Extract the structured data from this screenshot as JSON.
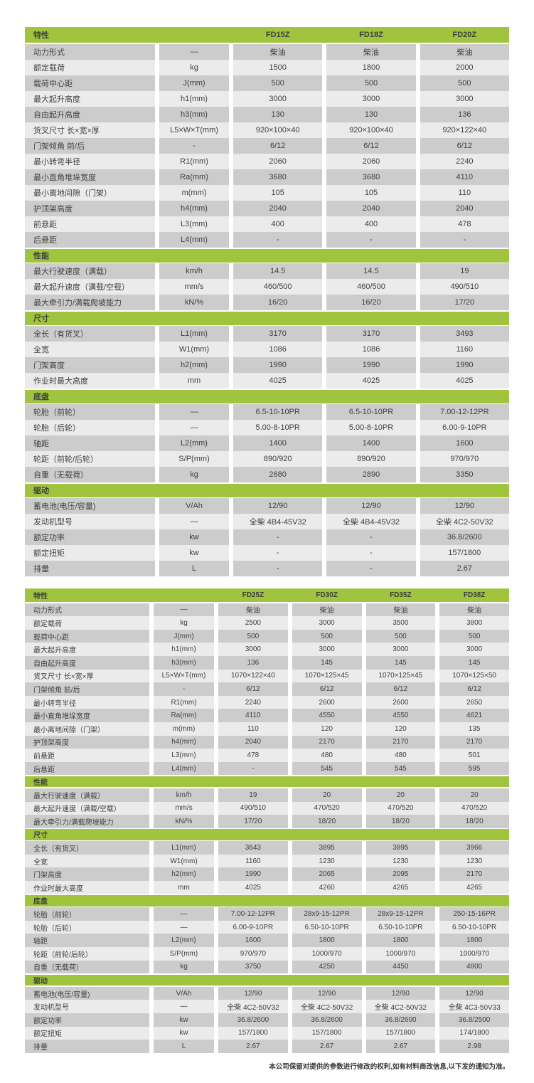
{
  "colors": {
    "green": "#a0c43e",
    "row_dark": "#cccccc",
    "row_light": "#ebebeb",
    "text": "#3f3f3f",
    "page_bg": "#ffffff"
  },
  "footer_note": "本公司保留对提供的参数进行修改的权利,如有材料商改信息,以下发的通知为准。",
  "tables": [
    {
      "feature_header": "特性",
      "models": [
        "FD15Z",
        "FD18Z",
        "FD20Z"
      ],
      "sections": [
        {
          "title": "",
          "rows": [
            {
              "label": "动力形式",
              "unit": "—",
              "values": [
                "柴油",
                "柴油",
                "柴油"
              ]
            },
            {
              "label": "额定载荷",
              "unit": "kg",
              "values": [
                "1500",
                "1800",
                "2000"
              ]
            },
            {
              "label": "载荷中心距",
              "unit": "J(mm)",
              "values": [
                "500",
                "500",
                "500"
              ]
            },
            {
              "label": "最大起升高度",
              "unit": "h1(mm)",
              "values": [
                "3000",
                "3000",
                "3000"
              ]
            },
            {
              "label": "自由起升高度",
              "unit": "h3(mm)",
              "values": [
                "130",
                "130",
                "136"
              ]
            },
            {
              "label": "货叉尺寸 长×宽×厚",
              "unit": "L5×W×T(mm)",
              "values": [
                "920×100×40",
                "920×100×40",
                "920×122×40"
              ]
            },
            {
              "label": "门架倾角 前/后",
              "unit": "-",
              "values": [
                "6/12",
                "6/12",
                "6/12"
              ]
            },
            {
              "label": "最小转弯半径",
              "unit": "R1(mm)",
              "values": [
                "2060",
                "2060",
                "2240"
              ]
            },
            {
              "label": "最小直角堆垛宽度",
              "unit": "Ra(mm)",
              "values": [
                "3680",
                "3680",
                "4110"
              ]
            },
            {
              "label": "最小离地间隙（门架）",
              "unit": "m(mm)",
              "values": [
                "105",
                "105",
                "110"
              ]
            },
            {
              "label": "护顶架高度",
              "unit": "h4(mm)",
              "values": [
                "2040",
                "2040",
                "2040"
              ]
            },
            {
              "label": "前悬距",
              "unit": "L3(mm)",
              "values": [
                "400",
                "400",
                "478"
              ]
            },
            {
              "label": "后悬距",
              "unit": "L4(mm)",
              "values": [
                "-",
                "-",
                "-"
              ]
            }
          ]
        },
        {
          "title": "性能",
          "rows": [
            {
              "label": "最大行驶速度（满载）",
              "unit": "km/h",
              "values": [
                "14.5",
                "14.5",
                "19"
              ]
            },
            {
              "label": "最大起升速度（满载/空载）",
              "unit": "mm/s",
              "values": [
                "460/500",
                "460/500",
                "490/510"
              ]
            },
            {
              "label": "最大牵引力/满载爬坡能力",
              "unit": "kN/%",
              "values": [
                "16/20",
                "16/20",
                "17/20"
              ]
            }
          ]
        },
        {
          "title": "尺寸",
          "rows": [
            {
              "label": "全长（有货叉）",
              "unit": "L1(mm)",
              "values": [
                "3170",
                "3170",
                "3493"
              ]
            },
            {
              "label": "全宽",
              "unit": "W1(mm)",
              "values": [
                "1086",
                "1086",
                "1160"
              ]
            },
            {
              "label": "门架高度",
              "unit": "h2(mm)",
              "values": [
                "1990",
                "1990",
                "1990"
              ]
            },
            {
              "label": "作业时最大高度",
              "unit": "mm",
              "values": [
                "4025",
                "4025",
                "4025"
              ]
            }
          ]
        },
        {
          "title": "底盘",
          "rows": [
            {
              "label": "轮胎（前轮）",
              "unit": "—",
              "values": [
                "6.5-10-10PR",
                "6.5-10-10PR",
                "7.00-12-12PR"
              ]
            },
            {
              "label": "轮胎（后轮）",
              "unit": "—",
              "values": [
                "5.00-8-10PR",
                "5.00-8-10PR",
                "6.00-9-10PR"
              ]
            },
            {
              "label": "轴距",
              "unit": "L2(mm)",
              "values": [
                "1400",
                "1400",
                "1600"
              ]
            },
            {
              "label": "轮距（前轮/后轮）",
              "unit": "S/P(mm)",
              "values": [
                "890/920",
                "890/920",
                "970/970"
              ]
            },
            {
              "label": "自重（无载荷）",
              "unit": "kg",
              "values": [
                "2680",
                "2890",
                "3350"
              ]
            }
          ]
        },
        {
          "title": "驱动",
          "rows": [
            {
              "label": "蓄电池(电压/容量)",
              "unit": "V/Ah",
              "values": [
                "12/90",
                "12/90",
                "12/90"
              ]
            },
            {
              "label": "发动机型号",
              "unit": "—",
              "values": [
                "全柴 4B4-45V32",
                "全柴 4B4-45V32",
                "全柴 4C2-50V32"
              ]
            },
            {
              "label": "额定功率",
              "unit": "kw",
              "values": [
                "-",
                "-",
                "36.8/2600"
              ]
            },
            {
              "label": "额定扭矩",
              "unit": "kw",
              "values": [
                "-",
                "-",
                "157/1800"
              ]
            },
            {
              "label": "排量",
              "unit": "L",
              "values": [
                "-",
                "-",
                "2.67"
              ]
            }
          ]
        }
      ]
    },
    {
      "feature_header": "特性",
      "models": [
        "FD25Z",
        "FD30Z",
        "FD35Z",
        "FD38Z"
      ],
      "sections": [
        {
          "title": "",
          "rows": [
            {
              "label": "动力形式",
              "unit": "—",
              "values": [
                "柴油",
                "柴油",
                "柴油",
                "柴油"
              ]
            },
            {
              "label": "额定载荷",
              "unit": "kg",
              "values": [
                "2500",
                "3000",
                "3500",
                "3800"
              ]
            },
            {
              "label": "载荷中心距",
              "unit": "J(mm)",
              "values": [
                "500",
                "500",
                "500",
                "500"
              ]
            },
            {
              "label": "最大起升高度",
              "unit": "h1(mm)",
              "values": [
                "3000",
                "3000",
                "3000",
                "3000"
              ]
            },
            {
              "label": "自由起升高度",
              "unit": "h3(mm)",
              "values": [
                "136",
                "145",
                "145",
                "145"
              ]
            },
            {
              "label": "货叉尺寸 长×宽×厚",
              "unit": "L5×W×T(mm)",
              "values": [
                "1070×122×40",
                "1070×125×45",
                "1070×125×45",
                "1070×125×50"
              ]
            },
            {
              "label": "门架倾角 前/后",
              "unit": "-",
              "values": [
                "6/12",
                "6/12",
                "6/12",
                "6/12"
              ]
            },
            {
              "label": "最小转弯半径",
              "unit": "R1(mm)",
              "values": [
                "2240",
                "2600",
                "2600",
                "2650"
              ]
            },
            {
              "label": "最小直角堆垛宽度",
              "unit": "Ra(mm)",
              "values": [
                "4110",
                "4550",
                "4550",
                "4621"
              ]
            },
            {
              "label": "最小离地间隙（门架）",
              "unit": "m(mm)",
              "values": [
                "110",
                "120",
                "120",
                "135"
              ]
            },
            {
              "label": "护顶架高度",
              "unit": "h4(mm)",
              "values": [
                "2040",
                "2170",
                "2170",
                "2170"
              ]
            },
            {
              "label": "前悬距",
              "unit": "L3(mm)",
              "values": [
                "478",
                "480",
                "480",
                "501"
              ]
            },
            {
              "label": "后悬距",
              "unit": "L4(mm)",
              "values": [
                "-",
                "545",
                "545",
                "595"
              ]
            }
          ]
        },
        {
          "title": "性能",
          "rows": [
            {
              "label": "最大行驶速度（满载）",
              "unit": "km/h",
              "values": [
                "19",
                "20",
                "20",
                "20"
              ]
            },
            {
              "label": "最大起升速度（满载/空载）",
              "unit": "mm/s",
              "values": [
                "490/510",
                "470/520",
                "470/520",
                "470/520"
              ]
            },
            {
              "label": "最大牵引力/满载爬坡能力",
              "unit": "kN/%",
              "values": [
                "17/20",
                "18/20",
                "18/20",
                "18/20"
              ]
            }
          ]
        },
        {
          "title": "尺寸",
          "rows": [
            {
              "label": "全长（有货叉）",
              "unit": "L1(mm)",
              "values": [
                "3643",
                "3895",
                "3895",
                "3966"
              ]
            },
            {
              "label": "全宽",
              "unit": "W1(mm)",
              "values": [
                "1160",
                "1230",
                "1230",
                "1230"
              ]
            },
            {
              "label": "门架高度",
              "unit": "h2(mm)",
              "values": [
                "1990",
                "2065",
                "2095",
                "2170"
              ]
            },
            {
              "label": "作业时最大高度",
              "unit": "mm",
              "values": [
                "4025",
                "4260",
                "4265",
                "4265"
              ]
            }
          ]
        },
        {
          "title": "底盘",
          "rows": [
            {
              "label": "轮胎（前轮）",
              "unit": "—",
              "values": [
                "7.00-12-12PR",
                "28x9-15-12PR",
                "28x9-15-12PR",
                "250-15-16PR"
              ]
            },
            {
              "label": "轮胎（后轮）",
              "unit": "—",
              "values": [
                "6.00-9-10PR",
                "6.50-10-10PR",
                "6.50-10-10PR",
                "6.50-10-10PR"
              ]
            },
            {
              "label": "轴距",
              "unit": "L2(mm)",
              "values": [
                "1600",
                "1800",
                "1800",
                "1800"
              ]
            },
            {
              "label": "轮距（前轮/后轮）",
              "unit": "S/P(mm)",
              "values": [
                "970/970",
                "1000/970",
                "1000/970",
                "1000/970"
              ]
            },
            {
              "label": "自重（无载荷）",
              "unit": "kg",
              "values": [
                "3750",
                "4250",
                "4450",
                "4800"
              ]
            }
          ]
        },
        {
          "title": "驱动",
          "rows": [
            {
              "label": "蓄电池(电压/容量)",
              "unit": "V/Ah",
              "values": [
                "12/90",
                "12/90",
                "12/90",
                "12/90"
              ]
            },
            {
              "label": "发动机型号",
              "unit": "—",
              "values": [
                "全柴 4C2-50V32",
                "全柴 4C2-50V32",
                "全柴 4C2-50V32",
                "全柴 4C3-50V33"
              ]
            },
            {
              "label": "额定功率",
              "unit": "kw",
              "values": [
                "36.8/2600",
                "36.8/2600",
                "36.8/2600",
                "36.8/2500"
              ]
            },
            {
              "label": "额定扭矩",
              "unit": "kw",
              "values": [
                "157/1800",
                "157/1800",
                "157/1800",
                "174/1800"
              ]
            },
            {
              "label": "排量",
              "unit": "L",
              "values": [
                "2.67",
                "2.67",
                "2.67",
                "2.98"
              ]
            }
          ]
        }
      ]
    }
  ]
}
